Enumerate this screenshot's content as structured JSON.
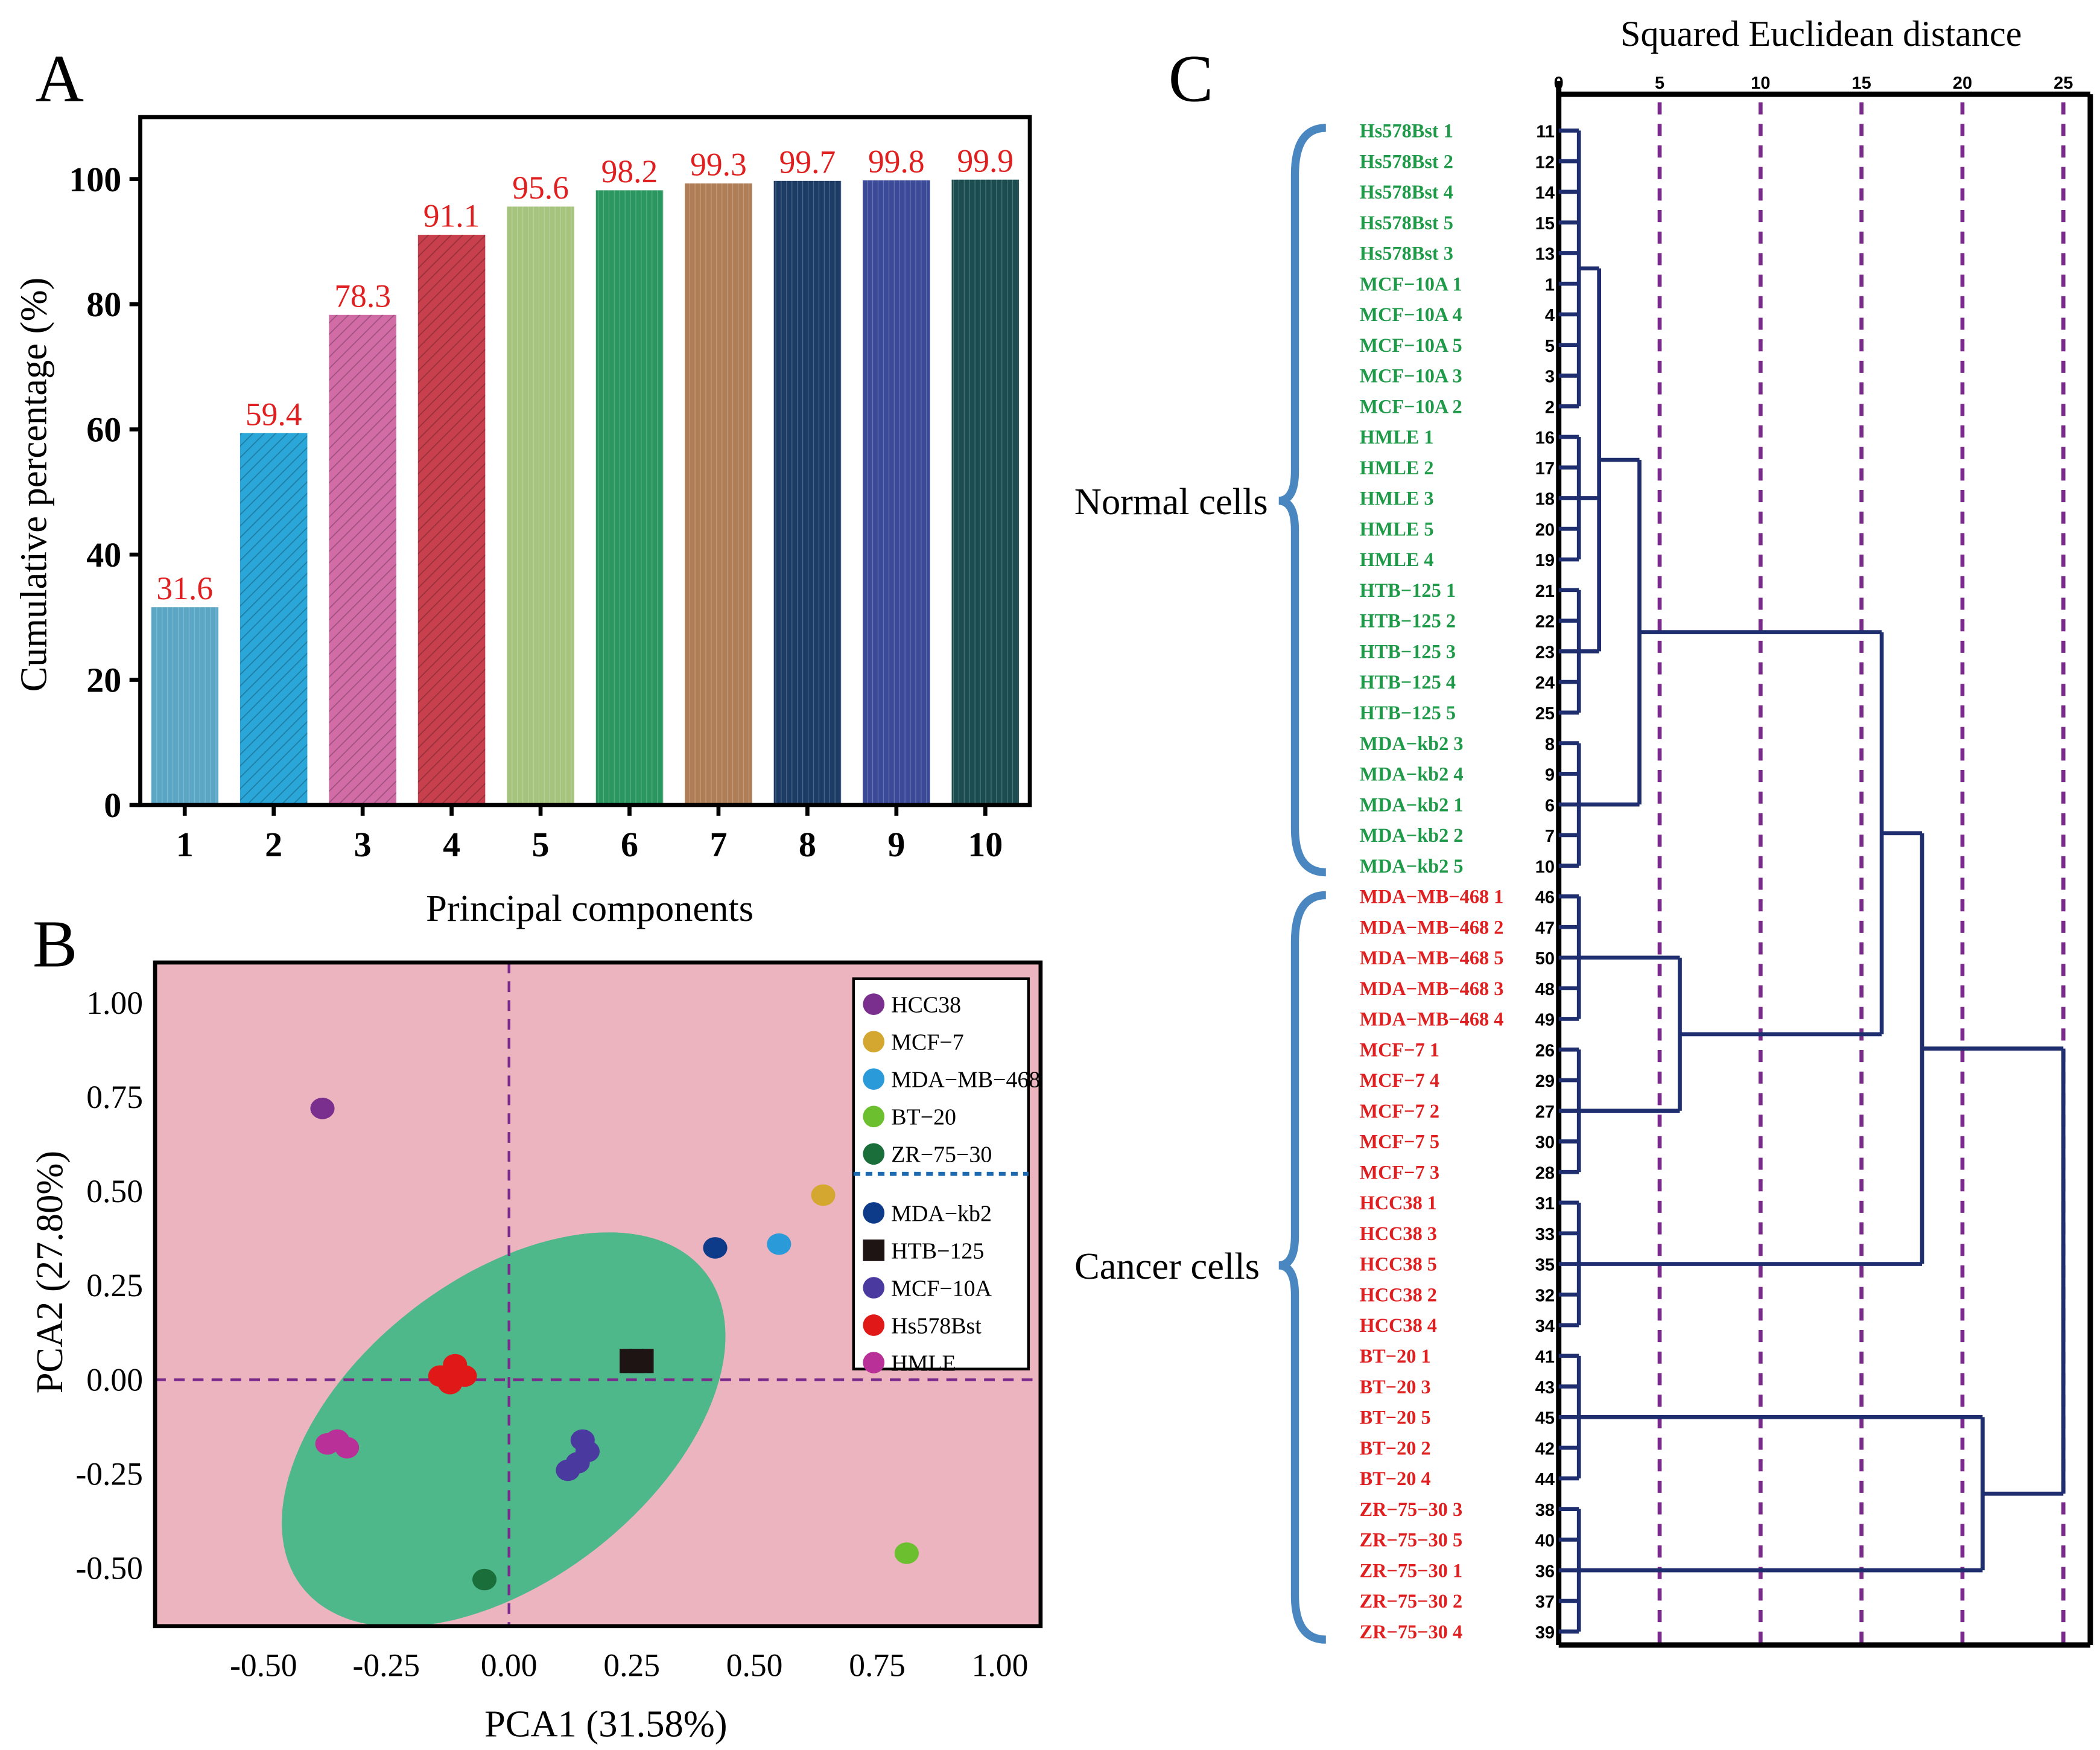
{
  "chart_data": [
    {
      "panel": "A",
      "type": "bar",
      "title": "",
      "xlabel": "Principal components",
      "ylabel": "Cumulative percentage (%)",
      "ylim": [
        0,
        110
      ],
      "yticks": [
        0,
        20,
        40,
        60,
        80,
        100
      ],
      "categories": [
        "1",
        "2",
        "3",
        "4",
        "5",
        "6",
        "7",
        "8",
        "9",
        "10"
      ],
      "values": [
        31.6,
        59.4,
        78.3,
        91.1,
        95.6,
        98.2,
        99.3,
        99.7,
        99.8,
        99.9
      ],
      "value_labels": [
        "31.6",
        "59.4",
        "78.3",
        "91.1",
        "95.6",
        "98.2",
        "99.3",
        "99.7",
        "99.8",
        "99.9"
      ],
      "colors": [
        "#5aa6c4",
        "#2aa6d8",
        "#d26ca6",
        "#c8404e",
        "#a6c47e",
        "#2a9660",
        "#b07e56",
        "#1c3c66",
        "#3a4a98",
        "#1a4c50"
      ],
      "label_color": "#e02020"
    },
    {
      "panel": "B",
      "type": "scatter",
      "xlabel": "PCA1 (31.58%)",
      "ylabel": "PCA2 (27.80%)",
      "xlim": [
        -0.72,
        1.08
      ],
      "ylim": [
        -0.66,
        1.1
      ],
      "xticks": [
        "-0.50",
        "-0.25",
        "0.00",
        "0.25",
        "0.50",
        "0.75",
        "1.00"
      ],
      "yticks": [
        "1.00",
        "0.75",
        "0.50",
        "0.25",
        "0.00",
        "-0.25",
        "-0.50"
      ],
      "background": "#ecb4bf",
      "ellipse_color": "#4fb88a",
      "series": [
        {
          "name": "HCC38",
          "color": "#7a2f8e",
          "shape": "blob",
          "points": [
            [
              -0.38,
              0.72
            ]
          ]
        },
        {
          "name": "MCF−7",
          "color": "#d4a830",
          "shape": "blob",
          "points": [
            [
              0.64,
              0.49
            ]
          ]
        },
        {
          "name": "MDA−MB−468",
          "color": "#2a9ad8",
          "shape": "blob",
          "points": [
            [
              0.55,
              0.36
            ]
          ]
        },
        {
          "name": "BT−20",
          "color": "#6cc030",
          "shape": "blob",
          "points": [
            [
              0.81,
              -0.46
            ]
          ]
        },
        {
          "name": "ZR−75−30",
          "color": "#1a6e3a",
          "shape": "blob",
          "points": [
            [
              -0.05,
              -0.53
            ]
          ]
        },
        {
          "name": "MDA−kb2",
          "color": "#0e3a8a",
          "shape": "blob",
          "points": [
            [
              0.42,
              0.35
            ]
          ]
        },
        {
          "name": "HTB−125",
          "color": "#1e1414",
          "shape": "square",
          "points": [
            [
              0.25,
              0.05
            ],
            [
              0.27,
              0.05
            ]
          ]
        },
        {
          "name": "MCF−10A",
          "color": "#4a3aa0",
          "shape": "blob",
          "points": [
            [
              0.12,
              -0.24
            ],
            [
              0.14,
              -0.22
            ],
            [
              0.16,
              -0.19
            ],
            [
              0.15,
              -0.16
            ]
          ]
        },
        {
          "name": "Hs578Bst",
          "color": "#e01818",
          "shape": "blob",
          "points": [
            [
              -0.14,
              0.01
            ],
            [
              -0.11,
              0.04
            ],
            [
              -0.09,
              0.01
            ],
            [
              -0.12,
              -0.01
            ]
          ]
        },
        {
          "name": "HMLE",
          "color": "#b83098",
          "shape": "blob",
          "points": [
            [
              -0.37,
              -0.17
            ],
            [
              -0.35,
              -0.16
            ],
            [
              -0.33,
              -0.18
            ]
          ]
        }
      ],
      "legend_separator_after": 5,
      "legend_position": "top-right"
    },
    {
      "panel": "C",
      "type": "dendrogram",
      "title": "Squared Euclidean distance",
      "xlim": [
        0,
        25
      ],
      "xticks": [
        "0",
        "5",
        "10",
        "15",
        "20",
        "25"
      ],
      "group_labels": {
        "normal": "Normal  cells",
        "cancer": "Cancer cells"
      },
      "leaves": [
        {
          "label": "Hs578Bst 1",
          "id": "11",
          "group": "normal"
        },
        {
          "label": "Hs578Bst 2",
          "id": "12",
          "group": "normal"
        },
        {
          "label": "Hs578Bst 4",
          "id": "14",
          "group": "normal"
        },
        {
          "label": "Hs578Bst 5",
          "id": "15",
          "group": "normal"
        },
        {
          "label": "Hs578Bst 3",
          "id": "13",
          "group": "normal"
        },
        {
          "label": "MCF−10A 1",
          "id": "1",
          "group": "normal"
        },
        {
          "label": "MCF−10A 4",
          "id": "4",
          "group": "normal"
        },
        {
          "label": "MCF−10A 5",
          "id": "5",
          "group": "normal"
        },
        {
          "label": "MCF−10A 3",
          "id": "3",
          "group": "normal"
        },
        {
          "label": "MCF−10A 2",
          "id": "2",
          "group": "normal"
        },
        {
          "label": "HMLE 1",
          "id": "16",
          "group": "normal"
        },
        {
          "label": "HMLE 2",
          "id": "17",
          "group": "normal"
        },
        {
          "label": "HMLE 3",
          "id": "18",
          "group": "normal"
        },
        {
          "label": "HMLE 5",
          "id": "20",
          "group": "normal"
        },
        {
          "label": "HMLE 4",
          "id": "19",
          "group": "normal"
        },
        {
          "label": "HTB−125 1",
          "id": "21",
          "group": "normal"
        },
        {
          "label": "HTB−125 2",
          "id": "22",
          "group": "normal"
        },
        {
          "label": "HTB−125 3",
          "id": "23",
          "group": "normal"
        },
        {
          "label": "HTB−125 4",
          "id": "24",
          "group": "normal"
        },
        {
          "label": "HTB−125 5",
          "id": "25",
          "group": "normal"
        },
        {
          "label": "MDA−kb2 3",
          "id": "8",
          "group": "normal"
        },
        {
          "label": "MDA−kb2 4",
          "id": "9",
          "group": "normal"
        },
        {
          "label": "MDA−kb2 1",
          "id": "6",
          "group": "normal"
        },
        {
          "label": "MDA−kb2 2",
          "id": "7",
          "group": "normal"
        },
        {
          "label": "MDA−kb2 5",
          "id": "10",
          "group": "normal"
        },
        {
          "label": "MDA−MB−468 1",
          "id": "46",
          "group": "cancer"
        },
        {
          "label": "MDA−MB−468 2",
          "id": "47",
          "group": "cancer"
        },
        {
          "label": "MDA−MB−468 5",
          "id": "50",
          "group": "cancer"
        },
        {
          "label": "MDA−MB−468 3",
          "id": "48",
          "group": "cancer"
        },
        {
          "label": "MDA−MB−468 4",
          "id": "49",
          "group": "cancer"
        },
        {
          "label": "MCF−7 1",
          "id": "26",
          "group": "cancer"
        },
        {
          "label": "MCF−7 4",
          "id": "29",
          "group": "cancer"
        },
        {
          "label": "MCF−7 2",
          "id": "27",
          "group": "cancer"
        },
        {
          "label": "MCF−7 5",
          "id": "30",
          "group": "cancer"
        },
        {
          "label": "MCF−7 3",
          "id": "28",
          "group": "cancer"
        },
        {
          "label": "HCC38 1",
          "id": "31",
          "group": "cancer"
        },
        {
          "label": "HCC38 3",
          "id": "33",
          "group": "cancer"
        },
        {
          "label": "HCC38 5",
          "id": "35",
          "group": "cancer"
        },
        {
          "label": "HCC38 2",
          "id": "32",
          "group": "cancer"
        },
        {
          "label": "HCC38 4",
          "id": "34",
          "group": "cancer"
        },
        {
          "label": "BT−20 1",
          "id": "41",
          "group": "cancer"
        },
        {
          "label": "BT−20 3",
          "id": "43",
          "group": "cancer"
        },
        {
          "label": "BT−20 5",
          "id": "45",
          "group": "cancer"
        },
        {
          "label": "BT−20 2",
          "id": "42",
          "group": "cancer"
        },
        {
          "label": "BT−20 4",
          "id": "44",
          "group": "cancer"
        },
        {
          "label": "ZR−75−30 3",
          "id": "38",
          "group": "cancer"
        },
        {
          "label": "ZR−75−30 5",
          "id": "40",
          "group": "cancer"
        },
        {
          "label": "ZR−75−30 1",
          "id": "36",
          "group": "cancer"
        },
        {
          "label": "ZR−75−30 2",
          "id": "37",
          "group": "cancer"
        },
        {
          "label": "ZR−75−30 4",
          "id": "39",
          "group": "cancer"
        }
      ],
      "clusters": [
        {
          "name": "c_hs_mcf10a",
          "rows": [
            0,
            9
          ],
          "height": 1
        },
        {
          "name": "c_hmle",
          "rows": [
            10,
            14
          ],
          "height": 1
        },
        {
          "name": "c_htb",
          "rows": [
            15,
            19
          ],
          "height": 1
        },
        {
          "name": "c_kb2",
          "rows": [
            20,
            24
          ],
          "height": 1
        },
        {
          "name": "c_468",
          "rows": [
            25,
            29
          ],
          "height": 1
        },
        {
          "name": "c_mcf7",
          "rows": [
            30,
            34
          ],
          "height": 1
        },
        {
          "name": "c_hcc38",
          "rows": [
            35,
            39
          ],
          "height": 1
        },
        {
          "name": "c_bt20",
          "rows": [
            40,
            44
          ],
          "height": 1
        },
        {
          "name": "c_zr",
          "rows": [
            45,
            49
          ],
          "height": 1
        },
        {
          "name": "m1",
          "children": [
            "c_hs_mcf10a",
            "c_hmle",
            "c_htb"
          ],
          "height": 2
        },
        {
          "name": "m2",
          "children": [
            "m1",
            "c_kb2"
          ],
          "height": 4
        },
        {
          "name": "m3",
          "children": [
            "c_468",
            "c_mcf7"
          ],
          "height": 6
        },
        {
          "name": "m4",
          "children": [
            "m2",
            "m3"
          ],
          "height": 16
        },
        {
          "name": "m5",
          "children": [
            "m4",
            "c_hcc38"
          ],
          "height": 18
        },
        {
          "name": "m6",
          "children": [
            "c_bt20",
            "c_zr"
          ],
          "height": 21
        },
        {
          "name": "m7",
          "children": [
            "m5",
            "m6"
          ],
          "height": 25
        }
      ],
      "normal_color": "#1e9a48",
      "cancer_color": "#e02020",
      "line_color": "#1e2e6e",
      "grid_color": "#7a2a8a",
      "brace_color": "#4a86c0"
    }
  ],
  "panel_labels": {
    "a": "A",
    "b": "B",
    "c": "C"
  }
}
